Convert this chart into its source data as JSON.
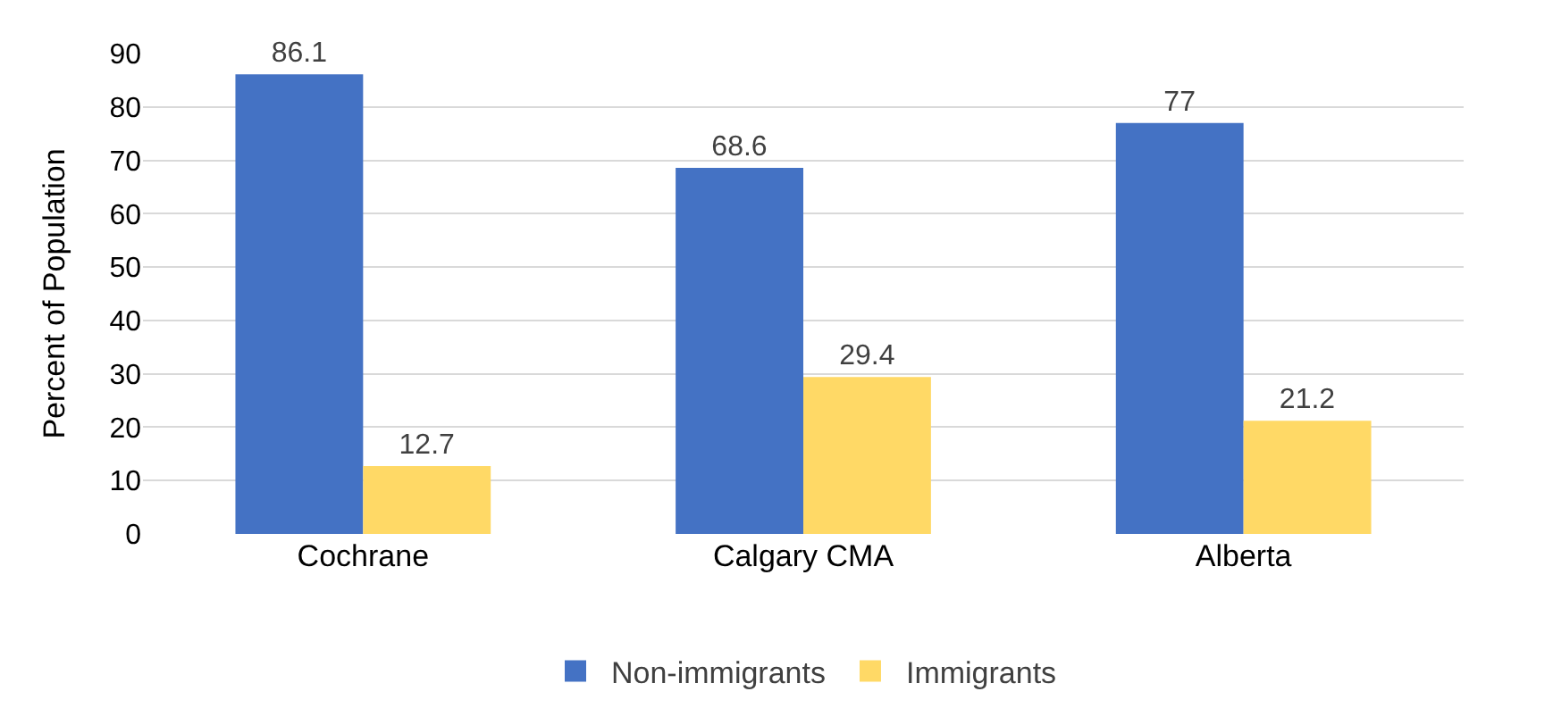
{
  "chart_data": {
    "type": "bar",
    "ylabel": "Percent of Population",
    "categories": [
      "Cochrane",
      "Calgary CMA",
      "Alberta"
    ],
    "series": [
      {
        "name": "Non-immigrants",
        "color": "#4472c4",
        "values": [
          86.1,
          68.6,
          77
        ]
      },
      {
        "name": "Immigrants",
        "color": "#ffd966",
        "values": [
          12.7,
          29.4,
          21.2
        ]
      }
    ],
    "ylim": [
      0,
      90
    ],
    "yticks": [
      0,
      10,
      20,
      30,
      40,
      50,
      60,
      70,
      80,
      90
    ],
    "grid": "y",
    "legend": "bottom",
    "data_labels": true
  }
}
